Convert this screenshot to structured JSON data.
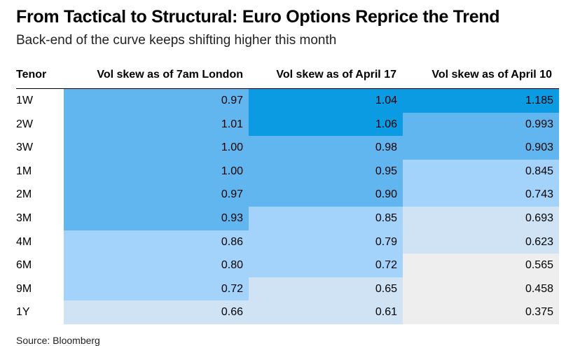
{
  "title": "From Tactical to Structural: Euro Options Reprice the Trend",
  "subtitle": "Back-end of the curve keeps shifting higher this month",
  "source": "Source: Bloomberg",
  "chart_data": {
    "type": "table",
    "columns": [
      "Tenor",
      "Vol skew as of 7am London",
      "Vol skew as of April 17",
      "Vol skew as of April 10"
    ],
    "rows": [
      {
        "tenor": "1W",
        "values": [
          "0.97",
          "1.04",
          "1.185"
        ]
      },
      {
        "tenor": "2W",
        "values": [
          "1.01",
          "1.06",
          "0.993"
        ]
      },
      {
        "tenor": "3W",
        "values": [
          "1.00",
          "0.98",
          "0.903"
        ]
      },
      {
        "tenor": "1M",
        "values": [
          "1.00",
          "0.95",
          "0.845"
        ]
      },
      {
        "tenor": "2M",
        "values": [
          "0.97",
          "0.90",
          "0.743"
        ]
      },
      {
        "tenor": "3M",
        "values": [
          "0.93",
          "0.85",
          "0.693"
        ]
      },
      {
        "tenor": "4M",
        "values": [
          "0.86",
          "0.79",
          "0.623"
        ]
      },
      {
        "tenor": "6M",
        "values": [
          "0.80",
          "0.72",
          "0.565"
        ]
      },
      {
        "tenor": "9M",
        "values": [
          "0.72",
          "0.65",
          "0.458"
        ]
      },
      {
        "tenor": "1Y",
        "values": [
          "0.66",
          "0.61",
          "0.375"
        ]
      }
    ],
    "color_scale": [
      {
        "min": 1.02,
        "color": "#0b9be3"
      },
      {
        "min": 0.88,
        "color": "#62b6f0"
      },
      {
        "min": 0.72,
        "color": "#a3d3fa"
      },
      {
        "min": 0.6,
        "color": "#cfe3f5"
      },
      {
        "min": 0,
        "color": "#eeeeee"
      }
    ]
  }
}
